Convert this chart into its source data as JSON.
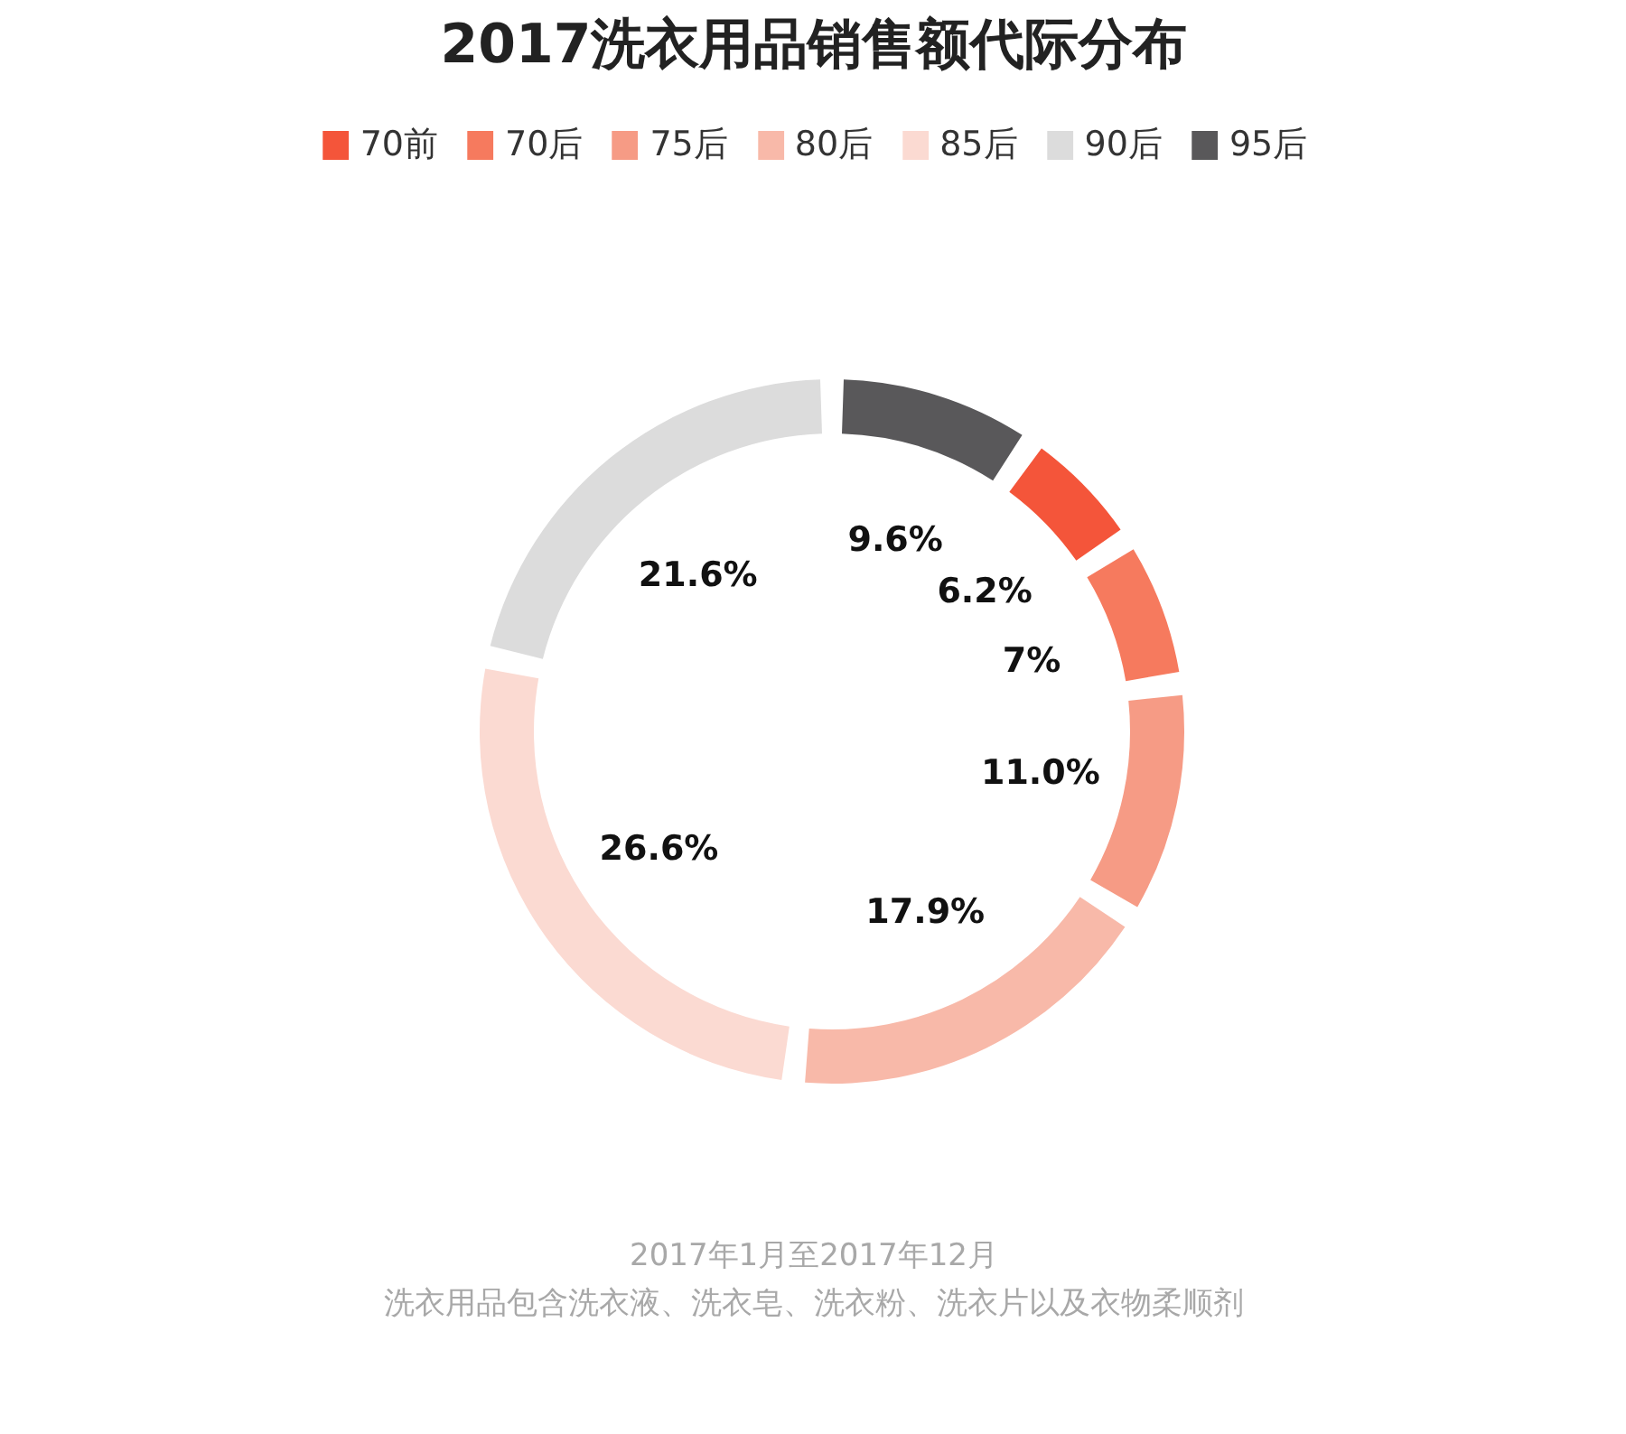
{
  "chart_data": {
    "type": "donut",
    "title": "2017洗衣用品销售额代际分布",
    "categories": [
      "70前",
      "70后",
      "75后",
      "80后",
      "85后",
      "90后",
      "95后"
    ],
    "values": [
      6.2,
      7,
      11.0,
      17.9,
      26.6,
      21.6,
      9.6
    ],
    "value_labels": [
      "6.2%",
      "7%",
      "11.0%",
      "17.9%",
      "26.6%",
      "21.6%",
      "9.6%"
    ],
    "colors": [
      "#f4553a",
      "#f67a5e",
      "#f69b85",
      "#f8b9a9",
      "#fbdad2",
      "#dcdcdc",
      "#59585a"
    ],
    "legend": "top",
    "annotations": [
      "2017年1月至2017年12月",
      "洗衣用品包含洗衣液、洗衣皂、洗衣粉、洗衣片以及衣物柔顺剂"
    ]
  }
}
